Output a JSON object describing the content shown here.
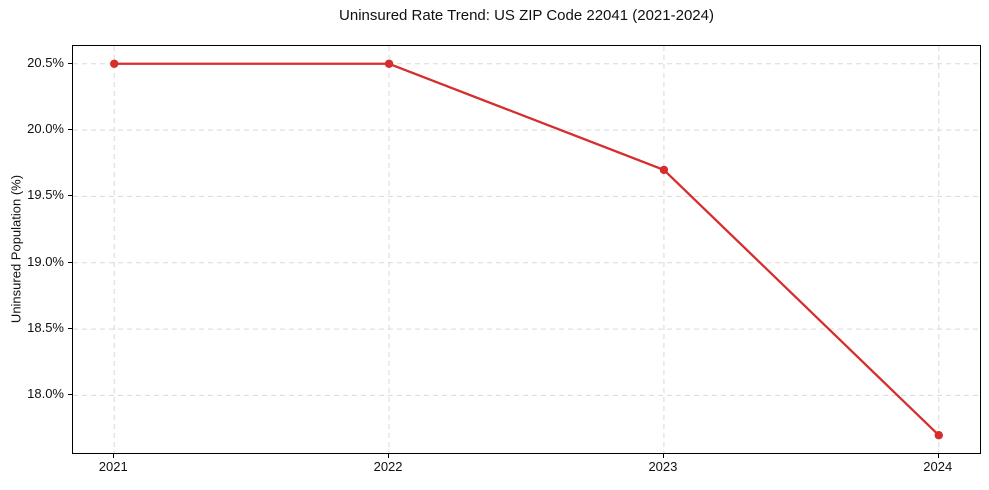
{
  "chart_data": {
    "type": "line",
    "title": "Uninsured Rate Trend: US ZIP Code 22041 (2021-2024)",
    "xlabel": "",
    "ylabel": "Uninsured Population (%)",
    "x": [
      2021,
      2022,
      2023,
      2024
    ],
    "x_tick_labels": [
      "2021",
      "2022",
      "2023",
      "2024"
    ],
    "series": [
      {
        "name": "Uninsured rate",
        "values": [
          20.5,
          20.5,
          19.7,
          17.7
        ]
      }
    ],
    "y_ticks": [
      18.0,
      18.5,
      19.0,
      19.5,
      20.0,
      20.5
    ],
    "y_tick_labels": [
      "18.0%",
      "18.5%",
      "19.0%",
      "19.5%",
      "20.0%",
      "20.5%"
    ],
    "xlim": [
      2020.85,
      2024.15
    ],
    "ylim": [
      17.566,
      20.634
    ],
    "grid": "dashed",
    "legend": "none",
    "colors": {
      "line": "#d62d2e",
      "marker": "#d62d2e",
      "grid": "#d9d9d9",
      "spine": "#000000",
      "text": "#111111",
      "background": "#ffffff"
    }
  }
}
